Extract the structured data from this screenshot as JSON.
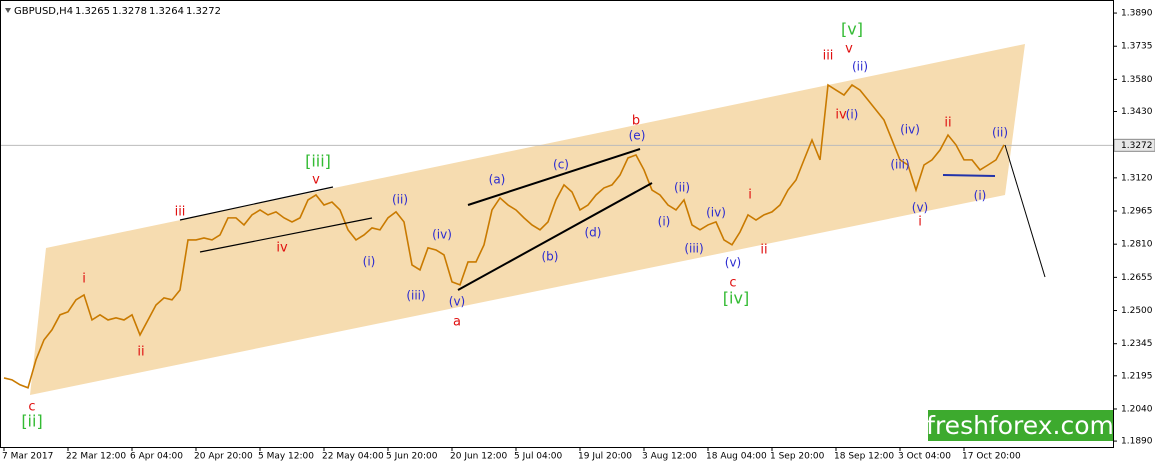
{
  "chart_data": {
    "type": "line",
    "title": "GBPUSD,H4",
    "ohlc": [
      1.3265,
      1.3278,
      1.3264,
      1.3272
    ],
    "current_price": 1.3272,
    "ylim": [
      1.1853,
      1.3951
    ],
    "yticks": [
      {
        "value": 1.389,
        "label": "1.3890"
      },
      1.3735,
      {
        "value": 1.358,
        "label": "1.3580"
      },
      {
        "value": 1.343,
        "label": "1.3430"
      },
      {
        "value": 1.312,
        "label": "1.3120"
      },
      1.2965,
      {
        "value": 1.281,
        "label": "1.2810"
      },
      1.2655,
      {
        "value": 1.25,
        "label": "1.2500"
      },
      1.2345,
      1.2195,
      {
        "value": 1.204,
        "label": "1.2040"
      },
      {
        "value": 1.189,
        "label": "1.1890"
      }
    ],
    "x_tick_labels": [
      "7 Mar 2017",
      "22 Mar 12:00",
      "6 Apr 04:00",
      "20 Apr 20:00",
      "5 May 12:00",
      "22 May 04:00",
      "5 Jun 20:00",
      "20 Jun 12:00",
      "5 Jul 04:00",
      "19 Jul 20:00",
      "3 Aug 12:00",
      "18 Aug 04:00",
      "1 Sep 20:00",
      "18 Sep 12:00",
      "3 Oct 04:00",
      "17 Oct 20:00"
    ],
    "series": [
      {
        "color": "#c97a00",
        "values": [
          1.2185,
          1.2176,
          1.2153,
          1.2139,
          1.227,
          1.2363,
          1.241,
          1.248,
          1.2494,
          1.255,
          1.2573,
          1.2456,
          1.248,
          1.2456,
          1.2466,
          1.2456,
          1.248,
          1.2386,
          1.2456,
          1.2526,
          1.2559,
          1.255,
          1.2596,
          1.283,
          1.283,
          1.2839,
          1.283,
          1.2853,
          1.2933,
          1.2933,
          1.29,
          1.2947,
          1.297,
          1.2947,
          1.2961,
          1.2933,
          1.2914,
          1.2933,
          1.3017,
          1.304,
          1.2993,
          1.3007,
          1.297,
          1.2877,
          1.283,
          1.2853,
          1.2886,
          1.2877,
          1.2933,
          1.2961,
          1.2914,
          1.2713,
          1.269,
          1.2793,
          1.2783,
          1.276,
          1.2634,
          1.262,
          1.2727,
          1.2727,
          1.2807,
          1.297,
          1.3026,
          1.2993,
          1.297,
          1.2933,
          1.29,
          1.2877,
          1.2914,
          1.3017,
          1.3087,
          1.3054,
          1.297,
          1.2993,
          1.304,
          1.3073,
          1.3087,
          1.3133,
          1.3213,
          1.3227,
          1.3157,
          1.3063,
          1.304,
          1.2993,
          1.297,
          1.3017,
          1.29,
          1.2877,
          1.29,
          1.2914,
          1.283,
          1.2807,
          1.2867,
          1.2947,
          1.2923,
          1.2947,
          1.2961,
          1.2993,
          1.3063,
          1.311,
          1.3204,
          1.3297,
          1.3204,
          1.3554,
          1.353,
          1.3507,
          1.3554,
          1.353,
          1.3484,
          1.3437,
          1.339,
          1.3297,
          1.3204,
          1.318,
          1.3063,
          1.318,
          1.3204,
          1.325,
          1.332,
          1.3274,
          1.3204,
          1.3204,
          1.3157,
          1.318,
          1.3204,
          1.3274
        ]
      }
    ],
    "annotations": [
      "c",
      "[ii]",
      "i",
      "ii",
      "iii",
      "[iii]",
      "v",
      "iv",
      "(ii)",
      "(i)",
      "(iv)",
      "(iii)",
      "(v)",
      "a",
      "(a)",
      "(b)",
      "(c)",
      "(d)",
      "(e)",
      "b",
      "(i)",
      "(ii)",
      "(iii)",
      "(iv)",
      "(v)",
      "c",
      "[iv]",
      "i",
      "ii",
      "iii",
      "v",
      "[v]",
      "(ii)",
      "iv",
      "(i)",
      "(iv)",
      "(iii)",
      "(v)",
      "i",
      "ii",
      "(ii)",
      "(i)"
    ],
    "watermark": "freshforex.com"
  }
}
